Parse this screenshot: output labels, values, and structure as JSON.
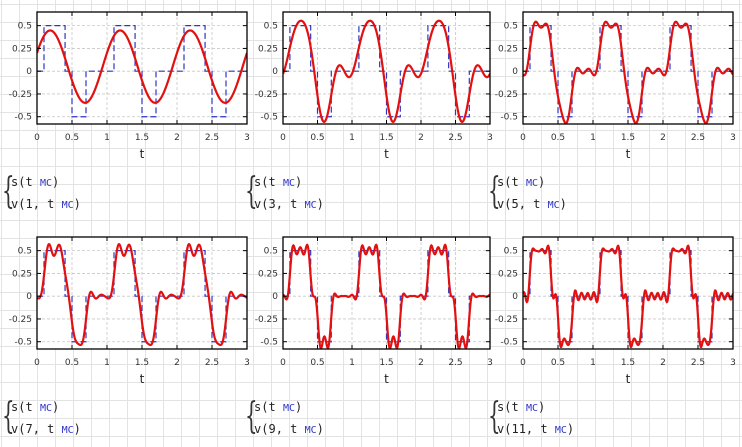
{
  "colors": {
    "fourier_curve": "#e31010",
    "signal_curve": "#2e35c4",
    "grid": "#c8c8c8",
    "axes": "#000000"
  },
  "chart_data": [
    {
      "type": "line",
      "title": "",
      "xlabel": "t",
      "ylabel": "",
      "xlim": [
        0,
        3
      ],
      "ylim": [
        -0.58,
        0.65
      ],
      "grid": true,
      "harmonics": 1,
      "x_ticks": [
        "0",
        "0.5",
        "1",
        "1.5",
        "2",
        "2.5",
        "3"
      ],
      "y_ticks": [
        "0.5",
        "0.25",
        "0",
        "-0.25",
        "-0.5"
      ],
      "series": [
        {
          "name": "s(t MC)",
          "style": "dashed",
          "color": "#2e35c4"
        },
        {
          "name": "v(1, t MC)",
          "style": "solid",
          "color": "#e31010"
        }
      ]
    },
    {
      "type": "line",
      "title": "",
      "xlabel": "t",
      "ylabel": "",
      "xlim": [
        0,
        3
      ],
      "ylim": [
        -0.58,
        0.65
      ],
      "grid": true,
      "harmonics": 3,
      "x_ticks": [
        "0",
        "0.5",
        "1",
        "1.5",
        "2",
        "2.5",
        "3"
      ],
      "y_ticks": [
        "0.5",
        "0.25",
        "0",
        "-0.25",
        "-0.5"
      ],
      "series": [
        {
          "name": "s(t MC)",
          "style": "dashed",
          "color": "#2e35c4"
        },
        {
          "name": "v(3, t MC)",
          "style": "solid",
          "color": "#e31010"
        }
      ]
    },
    {
      "type": "line",
      "title": "",
      "xlabel": "t",
      "ylabel": "",
      "xlim": [
        0,
        3
      ],
      "ylim": [
        -0.58,
        0.65
      ],
      "grid": true,
      "harmonics": 5,
      "x_ticks": [
        "0",
        "0.5",
        "1",
        "1.5",
        "2",
        "2.5",
        "3"
      ],
      "y_ticks": [
        "0.5",
        "0.25",
        "0",
        "-0.25",
        "-0.5"
      ],
      "series": [
        {
          "name": "s(t MC)",
          "style": "dashed",
          "color": "#2e35c4"
        },
        {
          "name": "v(5, t MC)",
          "style": "solid",
          "color": "#e31010"
        }
      ]
    },
    {
      "type": "line",
      "title": "",
      "xlabel": "t",
      "ylabel": "",
      "xlim": [
        0,
        3
      ],
      "ylim": [
        -0.58,
        0.65
      ],
      "grid": true,
      "harmonics": 7,
      "x_ticks": [
        "0",
        "0.5",
        "1",
        "1.5",
        "2",
        "2.5",
        "3"
      ],
      "y_ticks": [
        "0.5",
        "0.25",
        "0",
        "-0.25",
        "-0.5"
      ],
      "series": [
        {
          "name": "s(t MC)",
          "style": "dashed",
          "color": "#2e35c4"
        },
        {
          "name": "v(7, t MC)",
          "style": "solid",
          "color": "#e31010"
        }
      ]
    },
    {
      "type": "line",
      "title": "",
      "xlabel": "t",
      "ylabel": "",
      "xlim": [
        0,
        3
      ],
      "ylim": [
        -0.58,
        0.65
      ],
      "grid": true,
      "harmonics": 9,
      "x_ticks": [
        "0",
        "0.5",
        "1",
        "1.5",
        "2",
        "2.5",
        "3"
      ],
      "y_ticks": [
        "0.5",
        "0.25",
        "0",
        "-0.25",
        "-0.5"
      ],
      "series": [
        {
          "name": "s(t MC)",
          "style": "dashed",
          "color": "#2e35c4"
        },
        {
          "name": "v(9, t MC)",
          "style": "solid",
          "color": "#e31010"
        }
      ]
    },
    {
      "type": "line",
      "title": "",
      "xlabel": "t",
      "ylabel": "",
      "xlim": [
        0,
        3
      ],
      "ylim": [
        -0.58,
        0.65
      ],
      "grid": true,
      "harmonics": 11,
      "x_ticks": [
        "0",
        "0.5",
        "1",
        "1.5",
        "2",
        "2.5",
        "3"
      ],
      "y_ticks": [
        "0.5",
        "0.25",
        "0",
        "-0.25",
        "-0.5"
      ],
      "series": [
        {
          "name": "s(t MC)",
          "style": "dashed",
          "color": "#2e35c4"
        },
        {
          "name": "v(11, t MC)",
          "style": "solid",
          "color": "#e31010"
        }
      ]
    }
  ],
  "signal": {
    "period": 1,
    "segments": [
      {
        "from": 0.0,
        "to": 0.1,
        "value": 0
      },
      {
        "from": 0.1,
        "to": 0.4,
        "value": 0.5
      },
      {
        "from": 0.4,
        "to": 0.5,
        "value": 0
      },
      {
        "from": 0.5,
        "to": 0.7,
        "value": -0.5
      },
      {
        "from": 0.7,
        "to": 1.0,
        "value": 0
      }
    ]
  },
  "formulas": [
    {
      "line1": {
        "fn": "s",
        "arg": "t",
        "unit": "MC"
      },
      "line2": {
        "fn": "v",
        "n": "1",
        "arg": "t",
        "unit": "MC"
      }
    },
    {
      "line1": {
        "fn": "s",
        "arg": "t",
        "unit": "MC"
      },
      "line2": {
        "fn": "v",
        "n": "3",
        "arg": "t",
        "unit": "MC"
      }
    },
    {
      "line1": {
        "fn": "s",
        "arg": "t",
        "unit": "MC"
      },
      "line2": {
        "fn": "v",
        "n": "5",
        "arg": "t",
        "unit": "MC"
      }
    },
    {
      "line1": {
        "fn": "s",
        "arg": "t",
        "unit": "MC"
      },
      "line2": {
        "fn": "v",
        "n": "7",
        "arg": "t",
        "unit": "MC"
      }
    },
    {
      "line1": {
        "fn": "s",
        "arg": "t",
        "unit": "MC"
      },
      "line2": {
        "fn": "v",
        "n": "9",
        "arg": "t",
        "unit": "MC"
      }
    },
    {
      "line1": {
        "fn": "s",
        "arg": "t",
        "unit": "MC"
      },
      "line2": {
        "fn": "v",
        "n": "11",
        "arg": "t",
        "unit": "MC"
      }
    }
  ]
}
